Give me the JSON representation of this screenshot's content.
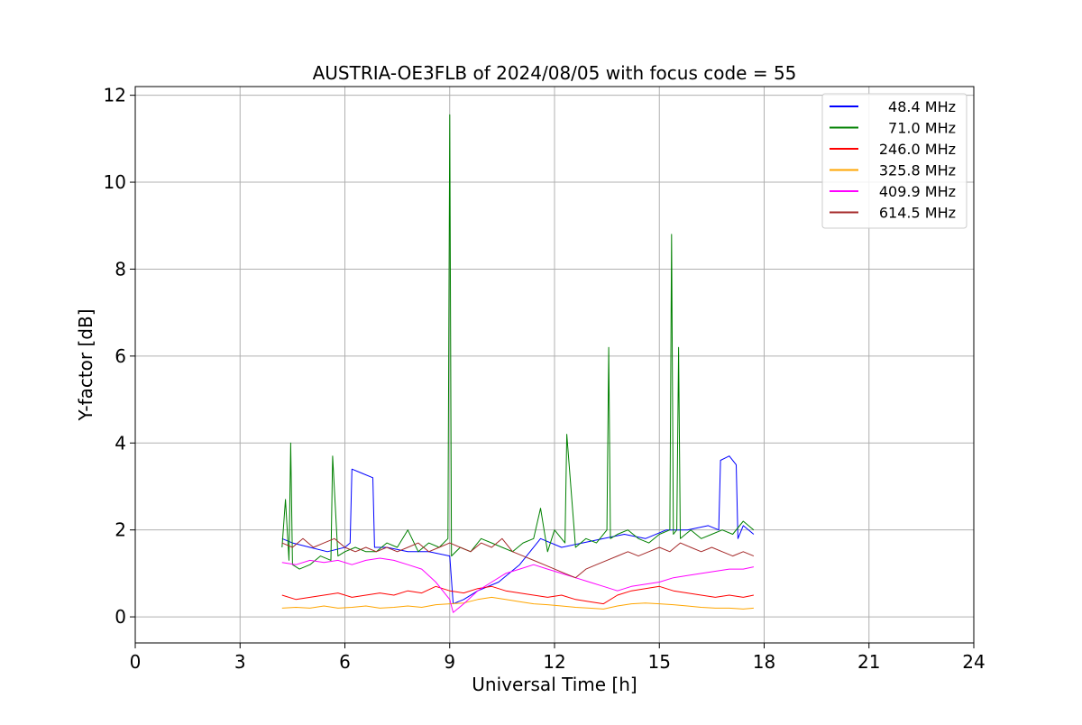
{
  "chart_data": {
    "type": "line",
    "title": "AUSTRIA-OE3FLB of 2024/08/05 with focus code = 55",
    "xlabel": "Universal Time [h]",
    "ylabel": "Y-factor [dB]",
    "xlim": [
      0,
      24
    ],
    "ylim": [
      -0.6,
      12.2
    ],
    "xticks": [
      0,
      3,
      6,
      9,
      12,
      15,
      18,
      21,
      24
    ],
    "xtick_labels": [
      "0",
      "3",
      "6",
      "9",
      "12",
      "15",
      "18",
      "21",
      "24"
    ],
    "yticks": [
      0,
      2,
      4,
      6,
      8,
      10,
      12
    ],
    "ytick_labels": [
      "0",
      "2",
      "4",
      "6",
      "8",
      "10",
      "12"
    ],
    "grid": true,
    "legend_position": "top-right",
    "series": [
      {
        "name": "48.4 MHz",
        "color": "#0000ff",
        "x": [
          4.2,
          4.5,
          5.0,
          5.5,
          6.0,
          6.15,
          6.2,
          6.5,
          6.8,
          6.85,
          7.2,
          7.8,
          8.4,
          9.0,
          9.1,
          9.4,
          9.8,
          10.4,
          11.0,
          11.6,
          12.2,
          12.8,
          13.4,
          14.0,
          14.6,
          15.2,
          15.8,
          16.4,
          16.7,
          16.75,
          17.0,
          17.2,
          17.25,
          17.4,
          17.7
        ],
        "y": [
          1.8,
          1.7,
          1.6,
          1.5,
          1.6,
          1.7,
          3.4,
          3.3,
          3.2,
          1.6,
          1.6,
          1.5,
          1.5,
          1.4,
          0.3,
          0.4,
          0.6,
          0.8,
          1.2,
          1.8,
          1.6,
          1.7,
          1.8,
          1.9,
          1.8,
          2.0,
          2.0,
          2.1,
          2.0,
          3.6,
          3.7,
          3.5,
          1.8,
          2.1,
          1.9
        ]
      },
      {
        "name": "71.0 MHz",
        "color": "#008000",
        "x": [
          4.2,
          4.3,
          4.4,
          4.45,
          4.5,
          4.7,
          5.0,
          5.3,
          5.6,
          5.65,
          5.8,
          6.0,
          6.3,
          6.6,
          6.9,
          7.2,
          7.5,
          7.8,
          8.1,
          8.4,
          8.7,
          8.95,
          9.0,
          9.05,
          9.3,
          9.6,
          9.9,
          10.2,
          10.5,
          10.8,
          11.1,
          11.4,
          11.6,
          11.8,
          12.0,
          12.3,
          12.35,
          12.6,
          12.9,
          13.2,
          13.5,
          13.55,
          13.6,
          13.8,
          14.1,
          14.4,
          14.7,
          15.0,
          15.3,
          15.35,
          15.4,
          15.5,
          15.55,
          15.6,
          15.9,
          16.2,
          16.5,
          16.8,
          17.1,
          17.4,
          17.7
        ],
        "y": [
          1.6,
          2.7,
          1.3,
          4.0,
          1.2,
          1.1,
          1.2,
          1.4,
          1.3,
          3.7,
          1.4,
          1.5,
          1.6,
          1.5,
          1.5,
          1.7,
          1.6,
          2.0,
          1.5,
          1.7,
          1.6,
          1.8,
          11.55,
          1.4,
          1.6,
          1.5,
          1.8,
          1.7,
          1.6,
          1.5,
          1.7,
          1.8,
          2.5,
          1.5,
          2.0,
          1.7,
          4.2,
          1.6,
          1.8,
          1.7,
          2.0,
          6.2,
          1.8,
          1.9,
          2.0,
          1.8,
          1.7,
          1.9,
          2.0,
          8.8,
          1.9,
          2.0,
          6.2,
          1.8,
          2.0,
          1.8,
          1.9,
          2.0,
          1.9,
          2.2,
          2.0
        ]
      },
      {
        "name": "246.0 MHz",
        "color": "#ff0000",
        "x": [
          4.2,
          4.6,
          5.0,
          5.4,
          5.8,
          6.2,
          6.6,
          7.0,
          7.4,
          7.8,
          8.2,
          8.6,
          9.0,
          9.4,
          9.8,
          10.2,
          10.6,
          11.0,
          11.4,
          11.8,
          12.2,
          12.6,
          13.0,
          13.4,
          13.8,
          14.2,
          14.6,
          15.0,
          15.4,
          15.8,
          16.2,
          16.6,
          17.0,
          17.4,
          17.7
        ],
        "y": [
          0.5,
          0.4,
          0.45,
          0.5,
          0.55,
          0.45,
          0.5,
          0.55,
          0.5,
          0.6,
          0.55,
          0.7,
          0.6,
          0.55,
          0.65,
          0.7,
          0.6,
          0.55,
          0.5,
          0.45,
          0.5,
          0.4,
          0.35,
          0.3,
          0.5,
          0.6,
          0.65,
          0.7,
          0.6,
          0.55,
          0.5,
          0.45,
          0.5,
          0.45,
          0.5
        ]
      },
      {
        "name": "325.8 MHz",
        "color": "#ffa500",
        "x": [
          4.2,
          4.6,
          5.0,
          5.4,
          5.8,
          6.2,
          6.6,
          7.0,
          7.4,
          7.8,
          8.2,
          8.6,
          9.0,
          9.4,
          9.8,
          10.2,
          10.6,
          11.0,
          11.4,
          11.8,
          12.2,
          12.6,
          13.0,
          13.4,
          13.8,
          14.2,
          14.6,
          15.0,
          15.4,
          15.8,
          16.2,
          16.6,
          17.0,
          17.4,
          17.7
        ],
        "y": [
          0.2,
          0.22,
          0.2,
          0.25,
          0.2,
          0.22,
          0.25,
          0.2,
          0.22,
          0.25,
          0.22,
          0.28,
          0.3,
          0.32,
          0.4,
          0.45,
          0.4,
          0.35,
          0.3,
          0.28,
          0.25,
          0.22,
          0.2,
          0.18,
          0.25,
          0.3,
          0.32,
          0.3,
          0.28,
          0.25,
          0.22,
          0.2,
          0.2,
          0.18,
          0.2
        ]
      },
      {
        "name": "409.9 MHz",
        "color": "#ff00ff",
        "x": [
          4.2,
          4.6,
          5.0,
          5.4,
          5.8,
          6.2,
          6.6,
          7.0,
          7.4,
          7.8,
          8.2,
          8.6,
          9.0,
          9.1,
          9.4,
          9.8,
          10.2,
          10.6,
          11.0,
          11.4,
          11.8,
          12.2,
          12.6,
          13.0,
          13.4,
          13.8,
          14.2,
          14.6,
          15.0,
          15.4,
          15.8,
          16.2,
          16.6,
          17.0,
          17.4,
          17.7
        ],
        "y": [
          1.25,
          1.2,
          1.3,
          1.25,
          1.3,
          1.2,
          1.3,
          1.35,
          1.3,
          1.2,
          1.1,
          0.8,
          0.4,
          0.1,
          0.3,
          0.6,
          0.8,
          1.0,
          1.1,
          1.2,
          1.1,
          1.0,
          0.9,
          0.8,
          0.7,
          0.6,
          0.7,
          0.75,
          0.8,
          0.9,
          0.95,
          1.0,
          1.05,
          1.1,
          1.1,
          1.15
        ]
      },
      {
        "name": "614.5 MHz",
        "color": "#a52a2a",
        "x": [
          4.2,
          4.5,
          4.8,
          5.1,
          5.4,
          5.7,
          6.0,
          6.3,
          6.6,
          6.9,
          7.2,
          7.5,
          7.8,
          8.1,
          8.4,
          8.7,
          9.0,
          9.3,
          9.6,
          9.9,
          10.2,
          10.5,
          10.8,
          11.1,
          11.4,
          11.7,
          12.0,
          12.3,
          12.6,
          12.9,
          13.2,
          13.5,
          13.8,
          14.1,
          14.4,
          14.7,
          15.0,
          15.3,
          15.6,
          15.9,
          16.2,
          16.5,
          16.8,
          17.1,
          17.4,
          17.7
        ],
        "y": [
          1.7,
          1.6,
          1.8,
          1.6,
          1.7,
          1.8,
          1.6,
          1.5,
          1.6,
          1.5,
          1.6,
          1.5,
          1.6,
          1.7,
          1.5,
          1.6,
          1.7,
          1.6,
          1.5,
          1.7,
          1.6,
          1.8,
          1.5,
          1.4,
          1.3,
          1.2,
          1.1,
          1.0,
          0.9,
          1.1,
          1.2,
          1.3,
          1.4,
          1.5,
          1.4,
          1.5,
          1.6,
          1.5,
          1.7,
          1.6,
          1.5,
          1.6,
          1.5,
          1.4,
          1.5,
          1.4
        ]
      }
    ]
  }
}
